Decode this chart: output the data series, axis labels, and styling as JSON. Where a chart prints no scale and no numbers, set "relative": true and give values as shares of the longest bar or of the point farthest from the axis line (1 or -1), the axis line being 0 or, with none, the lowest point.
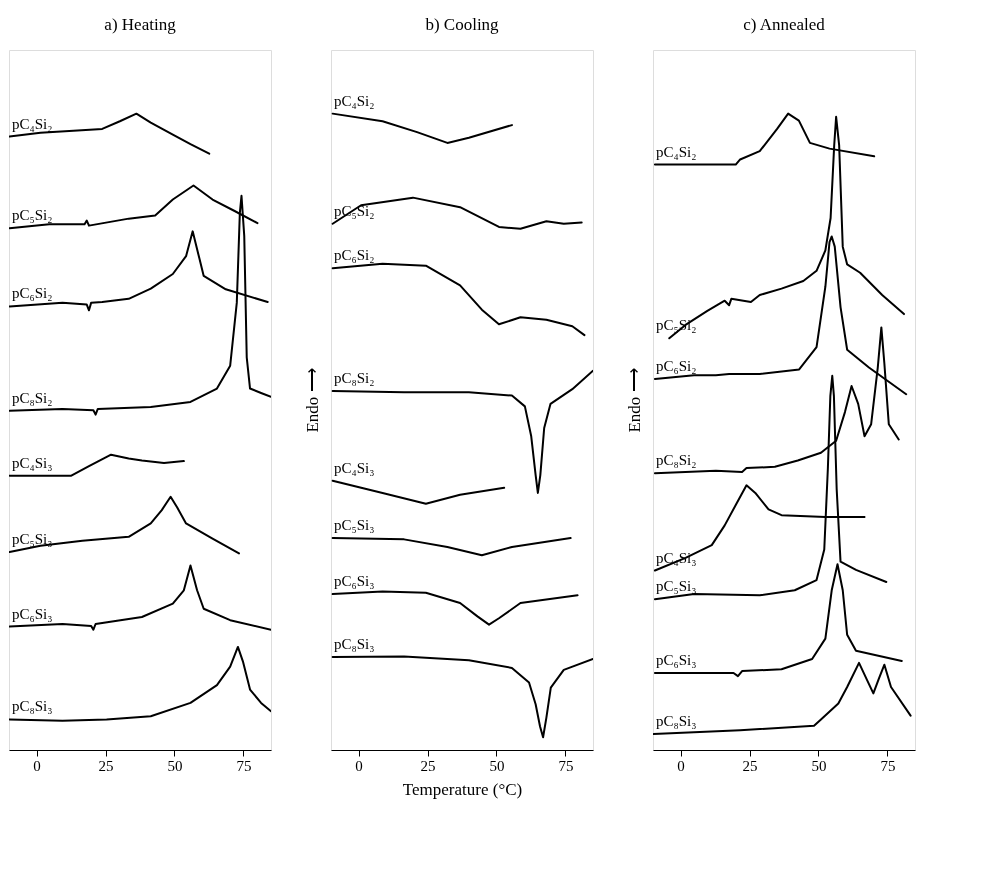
{
  "chart_data": [
    {
      "type": "line",
      "title": "a) Heating",
      "relative": true,
      "xlim": [
        -10,
        85
      ],
      "xticks": [
        0,
        25,
        50,
        75
      ],
      "tick_labels": "x",
      "grid": false,
      "legend": false,
      "line_style": "solid",
      "marker": "none",
      "series": [
        {
          "name": "pC₄Si₂",
          "color": "#000000",
          "x": [
            -9.8,
            1.4,
            23.8,
            30.2,
            36.2,
            41.4,
            49.4,
            55.8,
            62.6
          ],
          "values": [
            0.964,
            0.97,
            0.976,
            0.988,
            1.0,
            0.986,
            0.967,
            0.952,
            0.937
          ]
        },
        {
          "name": "pC₅Si₂",
          "color": "#000000",
          "x": [
            -9.8,
            4.6,
            17.4,
            18.2,
            19.0,
            33.4,
            43.0,
            49.4,
            56.9,
            63.8,
            71.8,
            80.1
          ],
          "values": [
            0.82,
            0.826,
            0.826,
            0.832,
            0.824,
            0.835,
            0.84,
            0.865,
            0.887,
            0.865,
            0.847,
            0.828
          ]
        },
        {
          "name": "pC₆Si₂",
          "color": "#000000",
          "x": [
            -9.8,
            9.4,
            18.2,
            19.0,
            19.8,
            23.8,
            33.4,
            41.4,
            49.4,
            54.2,
            56.6,
            59.0,
            60.6,
            68.6,
            83.8
          ],
          "values": [
            0.697,
            0.703,
            0.7,
            0.691,
            0.703,
            0.704,
            0.709,
            0.725,
            0.748,
            0.776,
            0.815,
            0.773,
            0.745,
            0.724,
            0.704
          ]
        },
        {
          "name": "pC₈Si₂",
          "color": "#000000",
          "x": [
            -9.8,
            9.4,
            20.6,
            21.4,
            22.2,
            41.4,
            55.8,
            65.4,
            70.2,
            72.6,
            73.7,
            74.3,
            75.3,
            76.2,
            77.4,
            81.4,
            85
          ],
          "values": [
            0.533,
            0.536,
            0.534,
            0.527,
            0.536,
            0.539,
            0.547,
            0.568,
            0.604,
            0.703,
            0.844,
            0.871,
            0.808,
            0.617,
            0.568,
            0.561,
            0.555
          ]
        },
        {
          "name": "pC₄Si₃",
          "color": "#000000",
          "x": [
            -9.8,
            4.6,
            12.6,
            19.0,
            27.0,
            33.4,
            38.2,
            46.2,
            53.4
          ],
          "values": [
            0.431,
            0.431,
            0.431,
            0.446,
            0.464,
            0.458,
            0.455,
            0.451,
            0.454
          ]
        },
        {
          "name": "pC₅Si₃",
          "color": "#000000",
          "x": [
            -9.8,
            1.4,
            16.6,
            33.4,
            41.4,
            45.4,
            48.6,
            51.0,
            54.2,
            63.8,
            73.4
          ],
          "values": [
            0.311,
            0.321,
            0.329,
            0.335,
            0.356,
            0.377,
            0.398,
            0.381,
            0.356,
            0.332,
            0.309
          ]
        },
        {
          "name": "pC₆Si₃",
          "color": "#000000",
          "x": [
            -9.8,
            9.4,
            19.8,
            20.6,
            21.4,
            38.2,
            49.4,
            53.4,
            55.8,
            58.2,
            60.6,
            70.2,
            85
          ],
          "values": [
            0.194,
            0.198,
            0.195,
            0.189,
            0.198,
            0.209,
            0.23,
            0.251,
            0.29,
            0.251,
            0.222,
            0.204,
            0.189
          ]
        },
        {
          "name": "pC₈Si₃",
          "color": "#000000",
          "x": [
            -9.8,
            9.4,
            25.4,
            41.4,
            55.8,
            65.4,
            70.2,
            73.0,
            74.9,
            77.4,
            81.4,
            85
          ],
          "values": [
            0.048,
            0.046,
            0.048,
            0.053,
            0.074,
            0.102,
            0.131,
            0.162,
            0.138,
            0.095,
            0.074,
            0.061
          ]
        }
      ]
    },
    {
      "type": "line",
      "title": "b) Cooling",
      "xlabel": "Temperature (°C)",
      "ylabel": "Endo ⟶",
      "relative": true,
      "xlim": [
        -10,
        85
      ],
      "xticks": [
        0,
        25,
        50,
        75
      ],
      "tick_labels": "x",
      "grid": false,
      "legend": false,
      "line_style": "solid",
      "marker": "none",
      "series": [
        {
          "name": "pC₄Si₂",
          "color": "#000000",
          "x": [
            -9.4,
            8.7,
            21.2,
            32.2,
            40.0,
            55.6
          ],
          "values": [
            1.0,
            0.988,
            0.971,
            0.954,
            0.962,
            0.982
          ]
        },
        {
          "name": "pC₅Si₂",
          "color": "#000000",
          "x": [
            -9.4,
            0.9,
            19.7,
            36.8,
            50.9,
            58.7,
            68.1,
            74.4,
            80.9
          ],
          "values": [
            0.827,
            0.856,
            0.868,
            0.853,
            0.822,
            0.819,
            0.831,
            0.827,
            0.829
          ]
        },
        {
          "name": "pC₆Si₂",
          "color": "#000000",
          "x": [
            -9.4,
            8.7,
            24.4,
            36.8,
            44.7,
            50.9,
            58.7,
            68.1,
            77.5,
            81.9
          ],
          "values": [
            0.757,
            0.764,
            0.761,
            0.73,
            0.692,
            0.669,
            0.68,
            0.676,
            0.666,
            0.652
          ]
        },
        {
          "name": "pC₈Si₂",
          "color": "#000000",
          "x": [
            -9.4,
            16.5,
            40.0,
            55.6,
            60.3,
            62.6,
            64.2,
            65.0,
            65.9,
            67.3,
            69.6,
            77.5,
            85
          ],
          "values": [
            0.564,
            0.562,
            0.562,
            0.557,
            0.54,
            0.493,
            0.432,
            0.404,
            0.432,
            0.506,
            0.544,
            0.567,
            0.596
          ]
        },
        {
          "name": "pC₄Si₃",
          "color": "#000000",
          "x": [
            -9.4,
            8.7,
            24.4,
            36.8,
            52.8
          ],
          "values": [
            0.423,
            0.404,
            0.387,
            0.401,
            0.412
          ]
        },
        {
          "name": "pC₅Si₃",
          "color": "#000000",
          "x": [
            -9.4,
            16.5,
            32.2,
            44.7,
            55.6,
            76.9
          ],
          "values": [
            0.333,
            0.331,
            0.319,
            0.306,
            0.319,
            0.333
          ]
        },
        {
          "name": "pC₆Si₃",
          "color": "#000000",
          "x": [
            -9.4,
            8.7,
            24.4,
            36.8,
            43.1,
            47.3,
            50.9,
            58.7,
            79.4
          ],
          "values": [
            0.245,
            0.249,
            0.247,
            0.231,
            0.21,
            0.197,
            0.207,
            0.231,
            0.243
          ]
        },
        {
          "name": "pC₈Si₃",
          "color": "#000000",
          "x": [
            -9.4,
            16.5,
            40.0,
            55.6,
            61.8,
            64.2,
            65.8,
            66.9,
            68.1,
            69.7,
            74.4,
            85
          ],
          "values": [
            0.146,
            0.147,
            0.141,
            0.129,
            0.106,
            0.072,
            0.037,
            0.02,
            0.051,
            0.098,
            0.126,
            0.143
          ]
        }
      ]
    },
    {
      "type": "line",
      "title": "c) Annealed",
      "ylabel": "Endo ⟶",
      "relative": true,
      "xlim": [
        -10,
        85
      ],
      "xticks": [
        0,
        25,
        50,
        75
      ],
      "tick_labels": "x",
      "grid": false,
      "legend": false,
      "line_style": "solid",
      "marker": "none",
      "series": [
        {
          "name": "pC₄Si₂",
          "color": "#000000",
          "x": [
            -9.3,
            20.0,
            21.6,
            28.7,
            35.0,
            39.0,
            42.9,
            46.9,
            54.0,
            70.2
          ],
          "values": [
            0.92,
            0.92,
            0.928,
            0.941,
            0.976,
            1.0,
            0.989,
            0.954,
            0.945,
            0.933
          ]
        },
        {
          "name": "pC₅Si₂",
          "color": "#000000",
          "x": [
            -4.1,
            1.8,
            9.7,
            16.0,
            17.6,
            18.4,
            25.5,
            28.7,
            36.6,
            44.5,
            49.3,
            52.5,
            54.4,
            55.7,
            56.4,
            57.5,
            58.8,
            60.4,
            65.1,
            73.1,
            81.0
          ],
          "values": [
            0.647,
            0.668,
            0.69,
            0.706,
            0.699,
            0.709,
            0.704,
            0.715,
            0.725,
            0.737,
            0.753,
            0.785,
            0.836,
            0.95,
            0.995,
            0.95,
            0.791,
            0.763,
            0.75,
            0.715,
            0.685
          ]
        },
        {
          "name": "pC₆Si₂",
          "color": "#000000",
          "x": [
            -9.3,
            4.9,
            12.8,
            17.6,
            28.7,
            43.0,
            49.3,
            52.5,
            54.0,
            54.8,
            55.9,
            58.0,
            60.4,
            68.3,
            81.8
          ],
          "values": [
            0.583,
            0.589,
            0.589,
            0.591,
            0.591,
            0.598,
            0.633,
            0.728,
            0.798,
            0.807,
            0.791,
            0.696,
            0.629,
            0.601,
            0.559
          ]
        },
        {
          "name": "pC₈Si₂",
          "color": "#000000",
          "x": [
            -9.3,
            12.8,
            22.3,
            23.9,
            34.2,
            42.5,
            50.9,
            56.4,
            59.6,
            62.0,
            64.4,
            66.7,
            69.1,
            71.5,
            72.8,
            73.9,
            75.5,
            79.1
          ],
          "values": [
            0.435,
            0.439,
            0.437,
            0.443,
            0.445,
            0.455,
            0.467,
            0.486,
            0.531,
            0.572,
            0.544,
            0.493,
            0.512,
            0.601,
            0.664,
            0.607,
            0.512,
            0.488
          ]
        },
        {
          "name": "pC₄Si₃",
          "color": "#000000",
          "x": [
            -9.3,
            1.8,
            11.3,
            16.0,
            20.0,
            23.9,
            27.1,
            31.9,
            36.6,
            52.5,
            66.7
          ],
          "values": [
            0.282,
            0.302,
            0.322,
            0.353,
            0.385,
            0.416,
            0.404,
            0.378,
            0.369,
            0.366,
            0.366
          ]
        },
        {
          "name": "pC₅Si₃",
          "color": "#000000",
          "x": [
            -9.3,
            4.9,
            28.7,
            41.4,
            49.3,
            52.1,
            53.4,
            54.3,
            55.0,
            55.6,
            56.6,
            58.0,
            63.6,
            74.6
          ],
          "values": [
            0.237,
            0.245,
            0.243,
            0.251,
            0.267,
            0.315,
            0.442,
            0.556,
            0.588,
            0.556,
            0.41,
            0.296,
            0.283,
            0.264
          ]
        },
        {
          "name": "pC₆Si₃",
          "color": "#000000",
          "x": [
            -9.3,
            19.2,
            20.8,
            22.3,
            36.6,
            47.7,
            52.5,
            54.8,
            56.9,
            58.8,
            60.4,
            63.6,
            80.2
          ],
          "values": [
            0.121,
            0.121,
            0.116,
            0.124,
            0.127,
            0.143,
            0.175,
            0.251,
            0.292,
            0.251,
            0.181,
            0.156,
            0.14
          ]
        },
        {
          "name": "pC₈Si₃",
          "color": "#000000",
          "x": [
            -9.8,
            21.6,
            48.4,
            50.9,
            57.2,
            60.4,
            64.7,
            67.5,
            69.9,
            71.8,
            73.9,
            76.3,
            83.4
          ],
          "values": [
            0.025,
            0.031,
            0.038,
            0.048,
            0.073,
            0.099,
            0.137,
            0.111,
            0.089,
            0.111,
            0.134,
            0.099,
            0.054
          ]
        }
      ]
    }
  ]
}
